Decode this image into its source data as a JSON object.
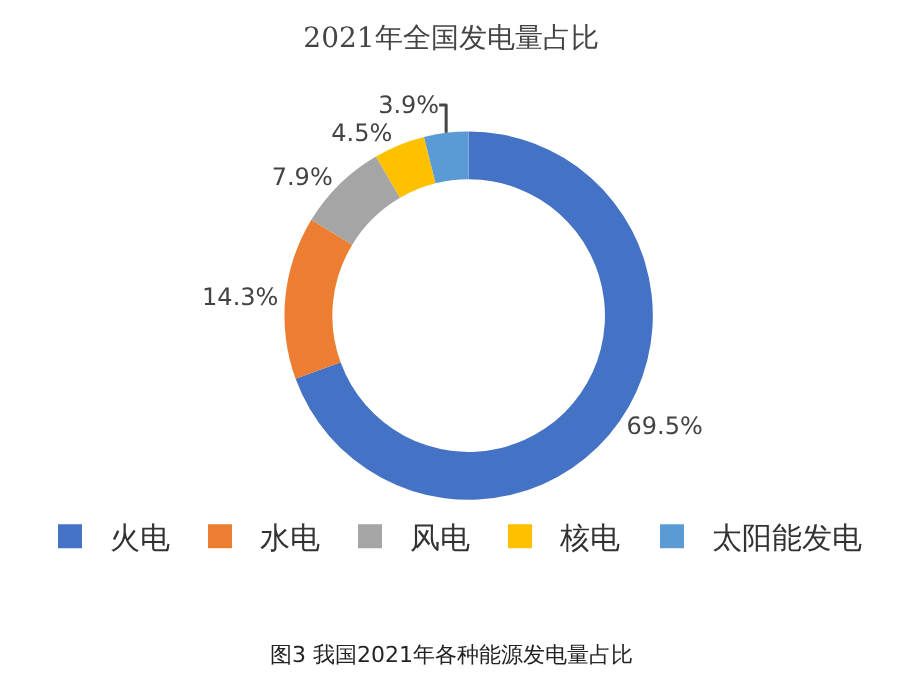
{
  "chart_data": {
    "type": "donut",
    "title": "2021年全国发电量占比",
    "categories": [
      "火电",
      "水电",
      "风电",
      "核电",
      "太阳能发电"
    ],
    "values": [
      69.5,
      14.3,
      7.9,
      4.5,
      3.9
    ],
    "colors": [
      "#4472c4",
      "#ed7d31",
      "#a5a5a5",
      "#ffc000",
      "#5b9bd5"
    ],
    "value_labels": [
      "69.5%",
      "14.3%",
      "7.9%",
      "4.5%",
      "3.9%"
    ],
    "legend": "bottom",
    "annotations": [
      "图3 我国2021年各种能源发电量占比"
    ]
  }
}
